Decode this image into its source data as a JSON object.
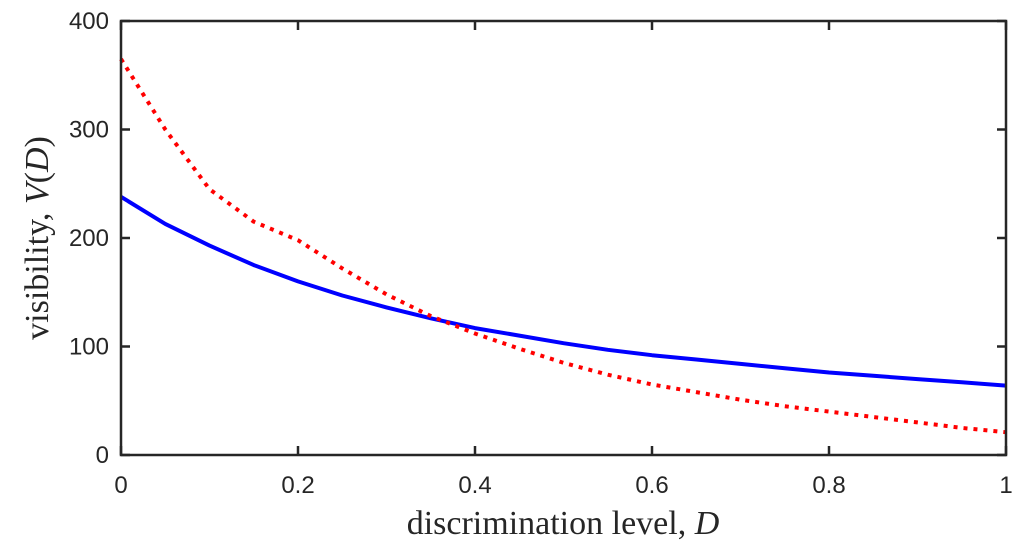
{
  "chart_data": {
    "type": "line",
    "title": "",
    "xlabel": "discrimination level, ",
    "xlabel_var": "D",
    "ylabel": "visibility, ",
    "ylabel_var": "V",
    "ylabel_paren_open": "(",
    "ylabel_paren_close": ")",
    "xlim": [
      0,
      1
    ],
    "ylim": [
      0,
      400
    ],
    "xticks": [
      0,
      0.2,
      0.4,
      0.6,
      0.8,
      1
    ],
    "xtick_labels": [
      "0",
      "0.2",
      "0.4",
      "0.6",
      "0.8",
      "1"
    ],
    "yticks": [
      0,
      100,
      200,
      300,
      400
    ],
    "ytick_labels": [
      "0",
      "100",
      "200",
      "300",
      "400"
    ],
    "grid": false,
    "legend": "none",
    "x": [
      0,
      0.05,
      0.1,
      0.15,
      0.2,
      0.25,
      0.3,
      0.35,
      0.4,
      0.45,
      0.5,
      0.55,
      0.6,
      0.65,
      0.7,
      0.75,
      0.8,
      0.85,
      0.9,
      0.95,
      1.0
    ],
    "series": [
      {
        "color": "#0000ff",
        "style": "solid",
        "values": [
          238,
          213,
          193,
          175,
          160,
          147,
          136,
          126,
          117,
          110,
          103,
          97,
          92,
          88,
          84,
          80,
          76,
          73,
          70,
          67,
          64
        ]
      },
      {
        "color": "#ff0000",
        "style": "dotted",
        "values": [
          365,
          300,
          245,
          215,
          198,
          172,
          148,
          128,
          112,
          98,
          85,
          74,
          65,
          58,
          51,
          45,
          40,
          35,
          30,
          25,
          21
        ]
      }
    ]
  }
}
